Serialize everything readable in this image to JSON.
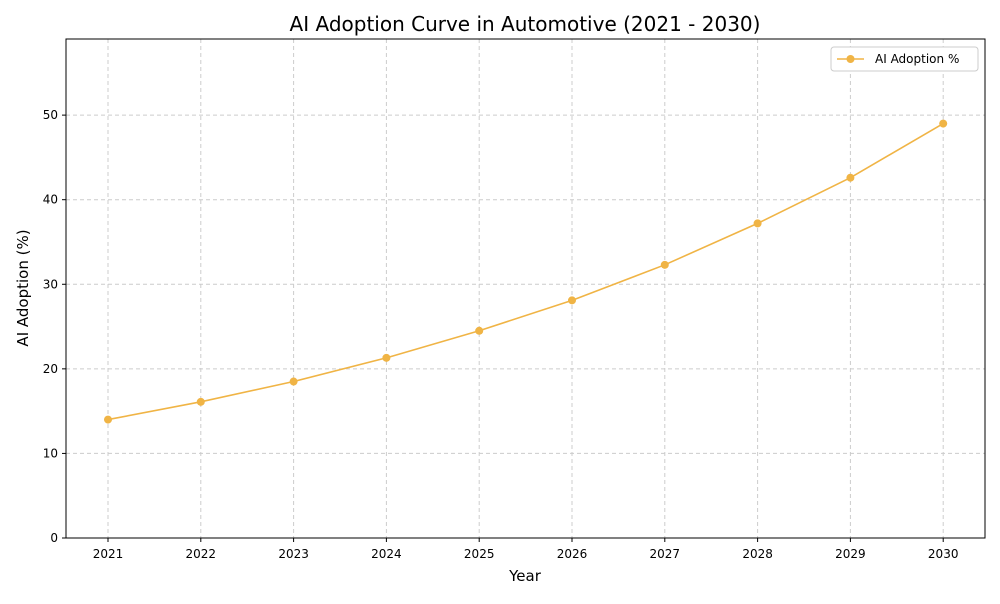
{
  "chart_data": {
    "type": "line",
    "title": "AI Adoption Curve in Automotive (2021 - 2030)",
    "xlabel": "Year",
    "ylabel": "AI Adoption (%)",
    "categories": [
      "2021",
      "2022",
      "2023",
      "2024",
      "2025",
      "2026",
      "2027",
      "2028",
      "2029",
      "2030"
    ],
    "series": [
      {
        "name": "AI Adoption %",
        "values": [
          14.0,
          16.1,
          18.5,
          21.3,
          24.5,
          28.1,
          32.3,
          37.2,
          42.6,
          49.0
        ],
        "color": "#F0B445",
        "marker": "circle"
      }
    ],
    "ylim": [
      0,
      59
    ],
    "yticks": [
      0,
      10,
      20,
      30,
      40,
      50
    ],
    "grid": true,
    "legend_position": "top-right"
  }
}
